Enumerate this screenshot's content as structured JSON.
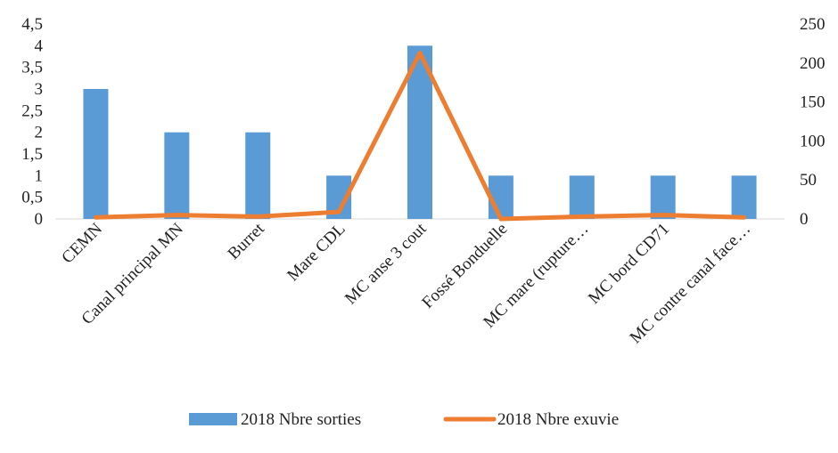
{
  "chart_data": {
    "type": "bar",
    "title": "",
    "categories": [
      "CEMN",
      "Canal principal MN",
      "Burret",
      "Mare CDL",
      "MC anse 3 cout",
      "Fossé Bonduelle",
      "MC mare (rupture…",
      "MC bord CD71",
      "MC contre canal face…"
    ],
    "series": [
      {
        "name": "2018 Nbre sorties",
        "type": "bar",
        "axis": "left",
        "color": "#5B9BD5",
        "values": [
          3,
          2,
          2,
          1,
          4,
          1,
          1,
          1,
          1
        ]
      },
      {
        "name": "2018 Nbre exuvie",
        "type": "line",
        "axis": "right",
        "color": "#ED7D31",
        "values": [
          2,
          5,
          3,
          9,
          213,
          0,
          3,
          5,
          2
        ]
      }
    ],
    "y_left": {
      "min": 0,
      "max": 4.5,
      "ticks": [
        "0",
        "0,5",
        "1",
        "1,5",
        "2",
        "2,5",
        "3",
        "3,5",
        "4",
        "4,5"
      ]
    },
    "y_right": {
      "min": 0,
      "max": 250,
      "ticks": [
        "0",
        "50",
        "100",
        "150",
        "200",
        "250"
      ]
    },
    "grid": false,
    "legend_position": "bottom"
  }
}
